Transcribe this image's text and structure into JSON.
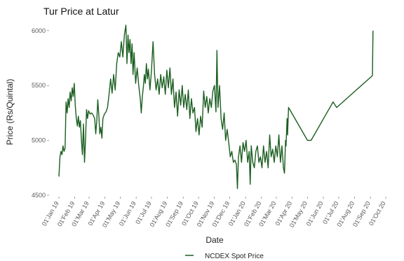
{
  "chart_data": {
    "type": "line",
    "title": "Tur Price at Latur",
    "xlabel": "Date",
    "ylabel": "Price (Rs/Quintal)",
    "ylim": [
      4500,
      6050
    ],
    "yticks": [
      4500,
      5000,
      5500,
      6000
    ],
    "xticks": [
      "01'Jan 19",
      "01'Feb 19",
      "01'Mar 19",
      "01'Apr 19",
      "01'May 19",
      "01'Jun 19",
      "01'Jul 19",
      "01'Aug 19",
      "01'Sep 19",
      "01'Oct 19",
      "01'Nov 19",
      "01'Dec 19",
      "01'Jan 20",
      "01'Feb 20",
      "01'Mar 20",
      "01'Apr 20",
      "01'May 20",
      "01'Jun 20",
      "01'Jul 20",
      "01'Aug 20",
      "01'Sep 20",
      "01'Oct 20"
    ],
    "grid": false,
    "legend_position": "bottom",
    "series": [
      {
        "name": "NCDEX Spot Price",
        "color": "#1b5e20",
        "points": [
          [
            "2019-01-01",
            4670
          ],
          [
            "2019-01-03",
            4850
          ],
          [
            "2019-01-05",
            4900
          ],
          [
            "2019-01-07",
            4870
          ],
          [
            "2019-01-09",
            4950
          ],
          [
            "2019-01-11",
            4900
          ],
          [
            "2019-01-13",
            4930
          ],
          [
            "2019-01-15",
            5350
          ],
          [
            "2019-01-17",
            5250
          ],
          [
            "2019-01-19",
            5380
          ],
          [
            "2019-01-21",
            5300
          ],
          [
            "2019-01-23",
            5440
          ],
          [
            "2019-01-25",
            5360
          ],
          [
            "2019-01-27",
            5480
          ],
          [
            "2019-01-29",
            5400
          ],
          [
            "2019-01-31",
            5520
          ],
          [
            "2019-02-02",
            5320
          ],
          [
            "2019-02-04",
            5200
          ],
          [
            "2019-02-06",
            5130
          ],
          [
            "2019-02-08",
            5220
          ],
          [
            "2019-02-10",
            5120
          ],
          [
            "2019-02-12",
            5180
          ],
          [
            "2019-02-14",
            5000
          ],
          [
            "2019-02-16",
            4870
          ],
          [
            "2019-02-18",
            5150
          ],
          [
            "2019-02-20",
            4800
          ],
          [
            "2019-02-22",
            5000
          ],
          [
            "2019-02-24",
            5280
          ],
          [
            "2019-02-26",
            5200
          ],
          [
            "2019-02-28",
            5270
          ],
          [
            "2019-03-03",
            5240
          ],
          [
            "2019-03-06",
            5250
          ],
          [
            "2019-03-09",
            5230
          ],
          [
            "2019-03-12",
            5200
          ],
          [
            "2019-03-14",
            5060
          ],
          [
            "2019-03-16",
            5180
          ],
          [
            "2019-03-18",
            5370
          ],
          [
            "2019-03-20",
            5230
          ],
          [
            "2019-03-22",
            5060
          ],
          [
            "2019-03-24",
            5120
          ],
          [
            "2019-03-26",
            5020
          ],
          [
            "2019-03-28",
            5200
          ],
          [
            "2019-03-31",
            5240
          ],
          [
            "2019-04-03",
            5260
          ],
          [
            "2019-04-06",
            5300
          ],
          [
            "2019-04-09",
            5420
          ],
          [
            "2019-04-12",
            5560
          ],
          [
            "2019-04-15",
            5430
          ],
          [
            "2019-04-18",
            5600
          ],
          [
            "2019-04-21",
            5460
          ],
          [
            "2019-04-24",
            5700
          ],
          [
            "2019-04-27",
            5800
          ],
          [
            "2019-04-30",
            5760
          ],
          [
            "2019-05-03",
            5900
          ],
          [
            "2019-05-06",
            5760
          ],
          [
            "2019-05-09",
            5960
          ],
          [
            "2019-05-12",
            6050
          ],
          [
            "2019-05-14",
            5700
          ],
          [
            "2019-05-16",
            5960
          ],
          [
            "2019-05-18",
            5800
          ],
          [
            "2019-05-20",
            5920
          ],
          [
            "2019-05-22",
            5700
          ],
          [
            "2019-05-24",
            5880
          ],
          [
            "2019-05-26",
            5600
          ],
          [
            "2019-05-28",
            5800
          ],
          [
            "2019-05-31",
            5520
          ],
          [
            "2019-06-03",
            5660
          ],
          [
            "2019-06-06",
            5500
          ],
          [
            "2019-06-09",
            5380
          ],
          [
            "2019-06-11",
            5250
          ],
          [
            "2019-06-13",
            5400
          ],
          [
            "2019-06-15",
            5480
          ],
          [
            "2019-06-17",
            5600
          ],
          [
            "2019-06-19",
            5520
          ],
          [
            "2019-06-21",
            5700
          ],
          [
            "2019-06-23",
            5560
          ],
          [
            "2019-06-25",
            5650
          ],
          [
            "2019-06-28",
            5460
          ],
          [
            "2019-07-01",
            5640
          ],
          [
            "2019-07-04",
            5900
          ],
          [
            "2019-07-07",
            5600
          ],
          [
            "2019-07-10",
            5460
          ],
          [
            "2019-07-13",
            5560
          ],
          [
            "2019-07-16",
            5420
          ],
          [
            "2019-07-19",
            5600
          ],
          [
            "2019-07-22",
            5480
          ],
          [
            "2019-07-25",
            5580
          ],
          [
            "2019-07-28",
            5420
          ],
          [
            "2019-07-31",
            5640
          ],
          [
            "2019-08-03",
            5480
          ],
          [
            "2019-08-06",
            5660
          ],
          [
            "2019-08-09",
            5420
          ],
          [
            "2019-08-12",
            5560
          ],
          [
            "2019-08-15",
            5300
          ],
          [
            "2019-08-18",
            5440
          ],
          [
            "2019-08-21",
            5220
          ],
          [
            "2019-08-24",
            5460
          ],
          [
            "2019-08-27",
            5320
          ],
          [
            "2019-08-30",
            5500
          ],
          [
            "2019-09-02",
            5300
          ],
          [
            "2019-09-05",
            5420
          ],
          [
            "2019-09-08",
            5280
          ],
          [
            "2019-09-11",
            5460
          ],
          [
            "2019-09-14",
            5200
          ],
          [
            "2019-09-17",
            5380
          ],
          [
            "2019-09-20",
            5250
          ],
          [
            "2019-09-23",
            5300
          ],
          [
            "2019-09-26",
            5080
          ],
          [
            "2019-09-29",
            5200
          ],
          [
            "2019-10-02",
            5050
          ],
          [
            "2019-10-05",
            5220
          ],
          [
            "2019-10-08",
            5120
          ],
          [
            "2019-10-11",
            5450
          ],
          [
            "2019-10-14",
            5300
          ],
          [
            "2019-10-17",
            5400
          ],
          [
            "2019-10-20",
            5250
          ],
          [
            "2019-10-23",
            5380
          ],
          [
            "2019-10-26",
            5300
          ],
          [
            "2019-10-29",
            5450
          ],
          [
            "2019-11-01",
            5500
          ],
          [
            "2019-11-04",
            5260
          ],
          [
            "2019-11-06",
            5820
          ],
          [
            "2019-11-08",
            5300
          ],
          [
            "2019-11-11",
            5500
          ],
          [
            "2019-11-14",
            5200
          ],
          [
            "2019-11-17",
            5100
          ],
          [
            "2019-11-20",
            5250
          ],
          [
            "2019-11-23",
            5000
          ],
          [
            "2019-11-26",
            5100
          ],
          [
            "2019-11-29",
            4980
          ],
          [
            "2019-12-02",
            4850
          ],
          [
            "2019-12-05",
            4900
          ],
          [
            "2019-12-08",
            4800
          ],
          [
            "2019-12-11",
            4820
          ],
          [
            "2019-12-14",
            4780
          ],
          [
            "2019-12-16",
            4560
          ],
          [
            "2019-12-18",
            4850
          ],
          [
            "2019-12-21",
            4950
          ],
          [
            "2019-12-24",
            4800
          ],
          [
            "2019-12-27",
            4980
          ],
          [
            "2019-12-30",
            4900
          ],
          [
            "2020-01-02",
            5000
          ],
          [
            "2020-01-05",
            4800
          ],
          [
            "2020-01-08",
            4900
          ],
          [
            "2020-01-10",
            4600
          ],
          [
            "2020-01-12",
            4950
          ],
          [
            "2020-01-15",
            4800
          ],
          [
            "2020-01-18",
            4750
          ],
          [
            "2020-01-21",
            4900
          ],
          [
            "2020-01-24",
            4950
          ],
          [
            "2020-01-27",
            4800
          ],
          [
            "2020-01-30",
            4850
          ],
          [
            "2020-02-02",
            4750
          ],
          [
            "2020-02-05",
            4950
          ],
          [
            "2020-02-08",
            4800
          ],
          [
            "2020-02-11",
            4900
          ],
          [
            "2020-02-14",
            4750
          ],
          [
            "2020-02-17",
            5050
          ],
          [
            "2020-02-20",
            4850
          ],
          [
            "2020-02-23",
            4920
          ],
          [
            "2020-02-26",
            4800
          ],
          [
            "2020-02-29",
            4950
          ],
          [
            "2020-03-03",
            4850
          ],
          [
            "2020-03-06",
            5050
          ],
          [
            "2020-03-09",
            4800
          ],
          [
            "2020-03-12",
            4950
          ],
          [
            "2020-03-15",
            4750
          ],
          [
            "2020-03-17",
            4700
          ],
          [
            "2020-03-19",
            5000
          ],
          [
            "2020-03-20",
            4950
          ],
          [
            "2020-03-22",
            5200
          ],
          [
            "2020-03-23",
            5050
          ],
          [
            "2020-03-25",
            5300
          ],
          [
            "2020-05-01",
            5000
          ],
          [
            "2020-05-08",
            5000
          ],
          [
            "2020-06-20",
            5350
          ],
          [
            "2020-06-27",
            5300
          ],
          [
            "2020-09-05",
            5590
          ],
          [
            "2020-09-06",
            6000
          ]
        ]
      }
    ]
  }
}
